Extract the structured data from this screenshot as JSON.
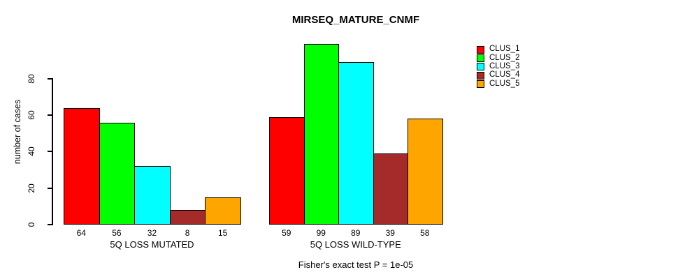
{
  "chart_data": {
    "type": "bar",
    "title": "MIRSEQ_MATURE_CNMF",
    "ylabel": "number of cases",
    "xlabel": "",
    "footnote": "Fisher's exact test P = 1e-05",
    "y_ticks": [
      0,
      20,
      40,
      60,
      80
    ],
    "ylim": [
      0,
      100
    ],
    "grid": false,
    "legend_position": "top-right",
    "bar_value_labels": true,
    "categories": [
      "5Q LOSS MUTATED",
      "5Q LOSS WILD-TYPE"
    ],
    "series": [
      {
        "name": "CLUS_1",
        "color": "#FF0000",
        "values": [
          64,
          59
        ]
      },
      {
        "name": "CLUS_2",
        "color": "#00FF00",
        "values": [
          56,
          99
        ]
      },
      {
        "name": "CLUS_3",
        "color": "#00FFFF",
        "values": [
          32,
          89
        ]
      },
      {
        "name": "CLUS_4",
        "color": "#A52A2A",
        "values": [
          8,
          39
        ]
      },
      {
        "name": "CLUS_5",
        "color": "#FFA500",
        "values": [
          15,
          58
        ]
      }
    ]
  }
}
